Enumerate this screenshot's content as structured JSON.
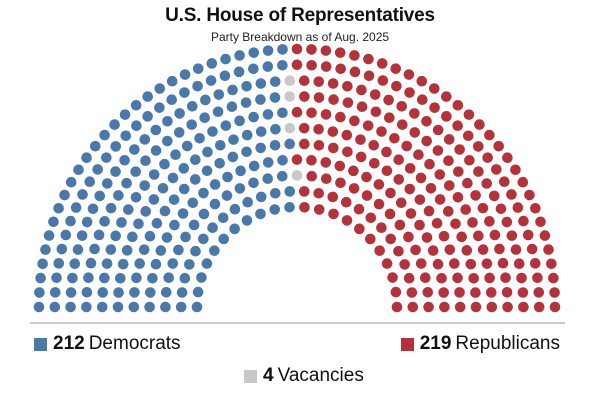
{
  "chart_data": {
    "type": "parliament",
    "title": "U.S. House of Representatives",
    "subtitle": "Party Breakdown as of Aug. 2025",
    "total_seats": 435,
    "series": [
      {
        "name": "Democrats",
        "value": 212,
        "color": "#4a78a8"
      },
      {
        "name": "Republicans",
        "value": 219,
        "color": "#b3333b"
      },
      {
        "name": "Vacancies",
        "value": 4,
        "color": "#c8c8c8"
      }
    ],
    "legend": [
      {
        "count": "212",
        "label": "Democrats",
        "color": "#4a78a8"
      },
      {
        "count": "219",
        "label": "Republicans",
        "color": "#b3333b"
      },
      {
        "count": "4",
        "label": "Vacancies",
        "color": "#c8c8c8"
      }
    ]
  }
}
